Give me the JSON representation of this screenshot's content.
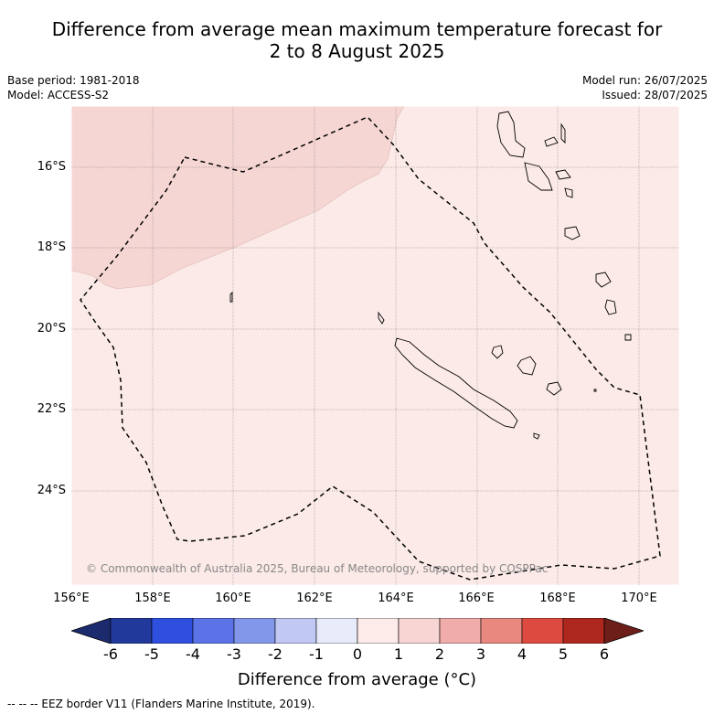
{
  "title": {
    "line1": "Difference from average mean maximum temperature forecast for",
    "line2": "2 to 8 August 2025"
  },
  "meta": {
    "base_period": "Base period: 1981-2018",
    "model": "Model: ACCESS-S2",
    "model_run": "Model run: 26/07/2025",
    "issued": "Issued: 28/07/2025"
  },
  "map": {
    "lat_labels": [
      "16°S",
      "18°S",
      "20°S",
      "22°S",
      "24°S"
    ],
    "lon_labels": [
      "156°E",
      "158°E",
      "160°E",
      "162°E",
      "164°E",
      "166°E",
      "168°E",
      "170°E"
    ],
    "copyright": "© Commonwealth of Australia 2025, Bureau of Meteorology, supported by COSPPac",
    "background_color": "#fbeae8",
    "anomaly_region_color": "#f5d6d3",
    "regions": [
      {
        "name": "0 to 1 °C anomaly",
        "color": "#fbeae8"
      },
      {
        "name": "1 to 2 °C anomaly",
        "color": "#f5d6d3"
      }
    ]
  },
  "colorbar": {
    "ticks": [
      "-6",
      "-5",
      "-4",
      "-3",
      "-2",
      "-1",
      "0",
      "1",
      "2",
      "3",
      "4",
      "5",
      "6"
    ],
    "colors": [
      "#22399c",
      "#2f4fdf",
      "#5b73e6",
      "#8297ea",
      "#c0c8f3",
      "#e8ebfa",
      "#fdebe9",
      "#f6d5d2",
      "#efaca8",
      "#e8887f",
      "#dd4a40",
      "#ae271f"
    ],
    "under_color": "#1b2b6e",
    "over_color": "#6e1e19",
    "label": "Difference from average (°C)"
  },
  "footer": {
    "text": "--  --  -- EEZ border V11 (Flanders Marine Institute, 2019)."
  }
}
